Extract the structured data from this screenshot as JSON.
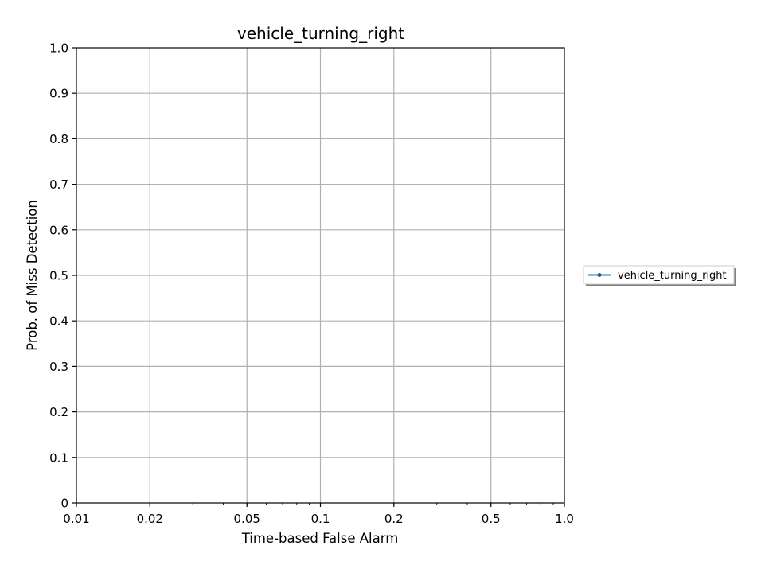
{
  "chart_data": {
    "type": "line",
    "title": "vehicle_turning_right",
    "xlabel": "Time-based False Alarm",
    "ylabel": "Prob. of Miss Detection",
    "xscale": "log",
    "xlim": [
      0.01,
      1.0
    ],
    "ylim": [
      0,
      1.0
    ],
    "xticks": [
      0.01,
      0.02,
      0.05,
      0.1,
      0.2,
      0.5,
      1.0
    ],
    "xtick_labels": [
      "0.01",
      "0.02",
      "0.05",
      "0.1",
      "0.2",
      "0.5",
      "1.0"
    ],
    "yticks": [
      0,
      0.1,
      0.2,
      0.3,
      0.4,
      0.5,
      0.6,
      0.7,
      0.8,
      0.9,
      1.0
    ],
    "ytick_labels": [
      "0",
      "0.1",
      "0.2",
      "0.3",
      "0.4",
      "0.5",
      "0.6",
      "0.7",
      "0.8",
      "0.9",
      "1.0"
    ],
    "grid": true,
    "legend_position": "right",
    "series": [
      {
        "name": "vehicle_turning_right",
        "color": "#1f77b4",
        "marker_color": "#3a4f8c",
        "x": [],
        "y": []
      }
    ]
  }
}
